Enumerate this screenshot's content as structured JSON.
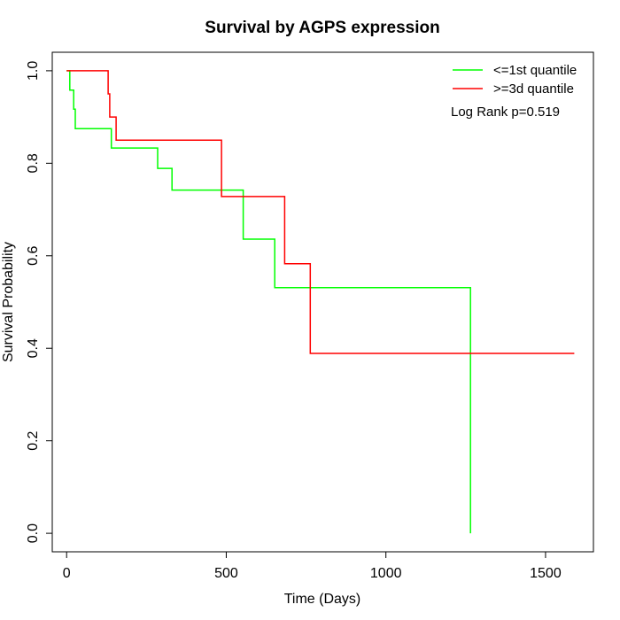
{
  "chart_data": {
    "type": "line",
    "title": "Survival by AGPS expression",
    "xlabel": "Time (Days)",
    "ylabel": "Survival Probability",
    "xlim": [
      -45,
      1650
    ],
    "ylim": [
      -0.04,
      1.04
    ],
    "xticks": [
      0,
      500,
      1000,
      1500
    ],
    "yticks": [
      0.0,
      0.2,
      0.4,
      0.6,
      0.8,
      1.0
    ],
    "xtick_labels": [
      "0",
      "500",
      "1000",
      "1500"
    ],
    "ytick_labels": [
      "0.0",
      "0.2",
      "0.4",
      "0.6",
      "0.8",
      "1.0"
    ],
    "grid": false,
    "legend_position": "top-right",
    "annotation": "Log Rank p=0.519",
    "step": true,
    "series": [
      {
        "name": "<=1st quantile",
        "color": "#00ff00",
        "x": [
          0,
          10,
          22,
          27,
          140,
          285,
          330,
          553,
          652,
          1265,
          1265
        ],
        "y": [
          1.0,
          0.958,
          0.917,
          0.875,
          0.833,
          0.789,
          0.742,
          0.636,
          0.531,
          0.531,
          0.0
        ]
      },
      {
        "name": ">=3d quantile",
        "color": "#ff0000",
        "x": [
          0,
          130,
          135,
          155,
          485,
          683,
          763,
          1590
        ],
        "y": [
          1.0,
          0.95,
          0.9,
          0.85,
          0.728,
          0.583,
          0.389,
          0.389
        ]
      }
    ]
  }
}
